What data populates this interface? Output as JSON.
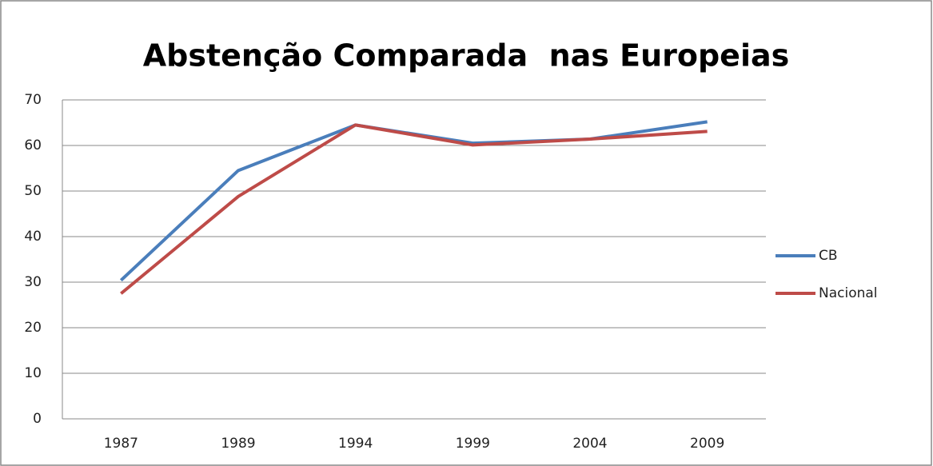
{
  "chart_data": {
    "type": "line",
    "title": "Abstenção Comparada  nas Europeias",
    "categories": [
      "1987",
      "1989",
      "1994",
      "1999",
      "2004",
      "2009"
    ],
    "series": [
      {
        "name": "CB",
        "color": "#4a7ebb",
        "values": [
          30.4,
          54.5,
          64.5,
          60.5,
          61.4,
          65.2
        ]
      },
      {
        "name": "Nacional",
        "color": "#be4b48",
        "values": [
          27.5,
          48.8,
          64.5,
          60.1,
          61.4,
          63.1
        ]
      }
    ],
    "ylim": [
      0,
      70
    ],
    "yticks": [
      0,
      10,
      20,
      30,
      40,
      50,
      60,
      70
    ],
    "grid": true,
    "legend": "right"
  }
}
